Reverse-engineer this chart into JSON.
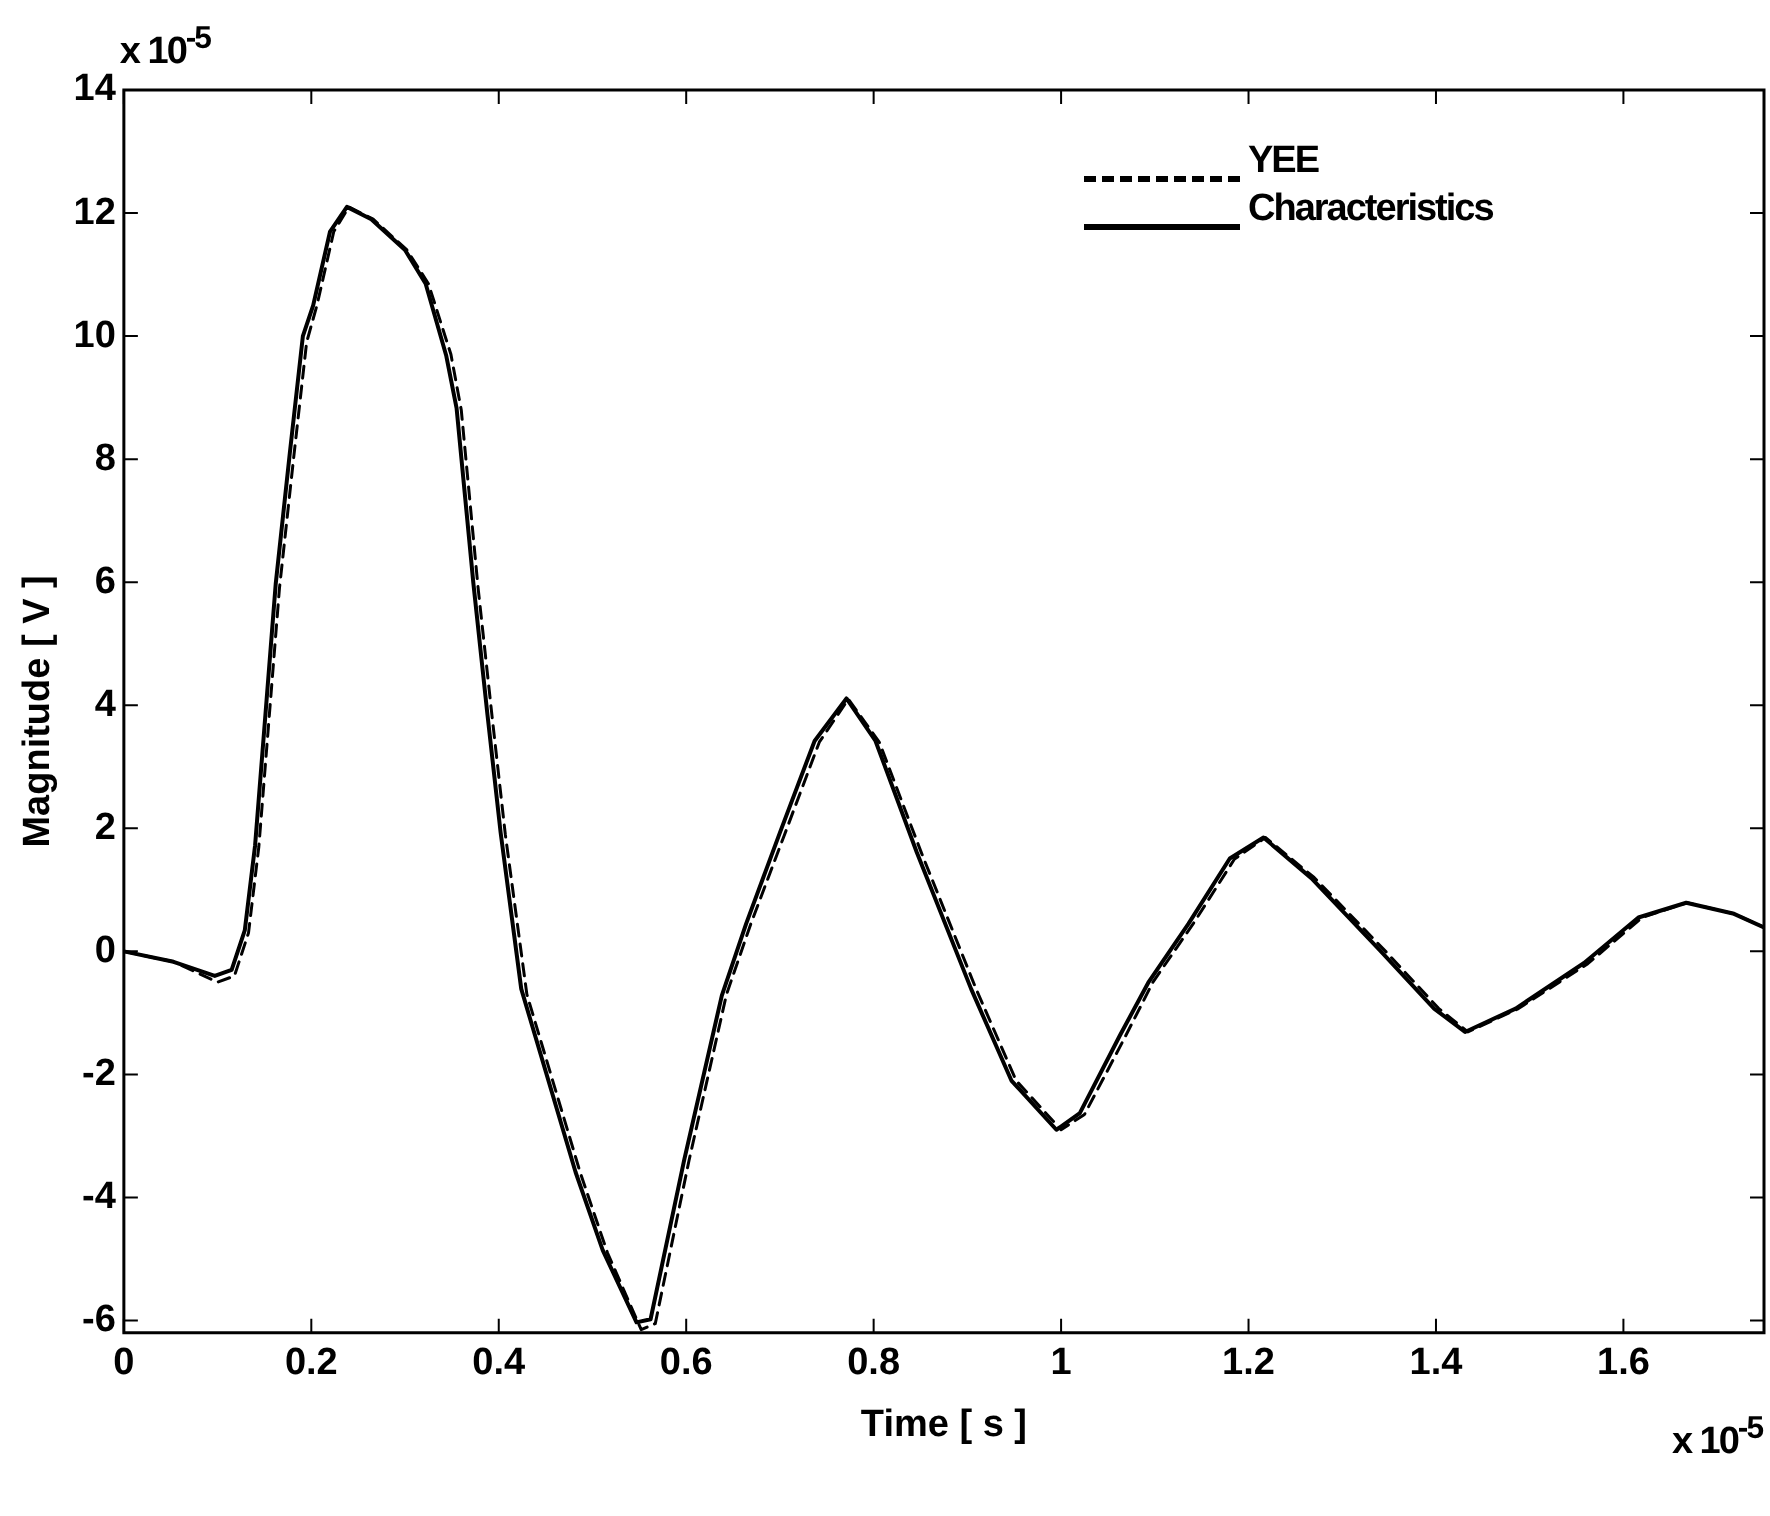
{
  "chart_data": {
    "type": "line",
    "xlabel": "Time [ s ]",
    "ylabel": "Magnitude [ V ]",
    "annotations": [
      "x 10$^{-5}$",
      "x 10$^{-5}$"
    ],
    "xlim": [
      0,
      1.75
    ],
    "xticks": [
      0,
      0.2,
      0.4,
      0.6,
      0.8,
      1,
      1.2,
      1.4,
      1.6
    ],
    "ylim": [
      -6.2,
      14
    ],
    "yticks": [
      -6,
      -4,
      -2,
      0,
      2,
      4,
      6,
      8,
      10,
      12,
      14
    ],
    "grid": false,
    "legend": "top right",
    "marker": "none",
    "series": [
      {
        "name": "YEE",
        "color": "#000000",
        "line_style": "dashed",
        "x": [
          0,
          0.053,
          0.1,
          0.118,
          0.133,
          0.144,
          0.155,
          0.166,
          0.181,
          0.195,
          0.206,
          0.224,
          0.24,
          0.266,
          0.302,
          0.325,
          0.349,
          0.36,
          0.378,
          0.393,
          0.407,
          0.43,
          0.487,
          0.516,
          0.552,
          0.567,
          0.603,
          0.643,
          0.669,
          0.705,
          0.742,
          0.773,
          0.806,
          0.851,
          0.909,
          0.952,
          1.0,
          1.025,
          1.068,
          1.098,
          1.141,
          1.185,
          1.218,
          1.27,
          1.345,
          1.403,
          1.434,
          1.488,
          1.562,
          1.62,
          1.668,
          1.718,
          1.75
        ],
        "values": [
          0,
          -0.17,
          -0.5,
          -0.4,
          0.3,
          1.7,
          3.8,
          5.9,
          8.0,
          9.9,
          10.5,
          11.7,
          12.1,
          11.9,
          11.4,
          10.85,
          9.7,
          8.8,
          5.9,
          3.8,
          1.9,
          -0.7,
          -3.6,
          -4.9,
          -6.15,
          -6.05,
          -3.4,
          -0.7,
          0.45,
          1.9,
          3.4,
          4.1,
          3.4,
          1.6,
          -0.6,
          -2.1,
          -2.9,
          -2.65,
          -1.4,
          -0.5,
          0.45,
          1.5,
          1.85,
          1.2,
          0.02,
          -0.93,
          -1.31,
          -0.93,
          -0.2,
          0.55,
          0.79,
          0.61,
          0.39
        ]
      },
      {
        "name": "Characteristics",
        "color": "#000000",
        "line_style": "solid",
        "x": [
          0,
          0.053,
          0.097,
          0.115,
          0.129,
          0.14,
          0.151,
          0.162,
          0.177,
          0.191,
          0.202,
          0.22,
          0.238,
          0.264,
          0.3,
          0.322,
          0.344,
          0.355,
          0.373,
          0.388,
          0.402,
          0.424,
          0.482,
          0.511,
          0.547,
          0.562,
          0.598,
          0.638,
          0.664,
          0.7,
          0.737,
          0.771,
          0.802,
          0.846,
          0.904,
          0.947,
          0.995,
          1.02,
          1.063,
          1.093,
          1.136,
          1.18,
          1.216,
          1.267,
          1.34,
          1.398,
          1.431,
          1.485,
          1.558,
          1.616,
          1.667,
          1.718,
          1.75
        ],
        "values": [
          0,
          -0.17,
          -0.4,
          -0.3,
          0.34,
          1.72,
          3.84,
          5.97,
          8.09,
          10.0,
          10.5,
          11.7,
          12.1,
          11.9,
          11.4,
          10.85,
          9.68,
          8.83,
          5.97,
          3.84,
          1.93,
          -0.61,
          -3.59,
          -4.86,
          -6.03,
          -5.98,
          -3.38,
          -0.72,
          0.45,
          1.93,
          3.42,
          4.11,
          3.42,
          1.61,
          -0.61,
          -2.1,
          -2.9,
          -2.63,
          -1.36,
          -0.51,
          0.45,
          1.51,
          1.85,
          1.19,
          0.02,
          -0.93,
          -1.31,
          -0.93,
          -0.19,
          0.55,
          0.79,
          0.61,
          0.39
        ]
      }
    ]
  }
}
